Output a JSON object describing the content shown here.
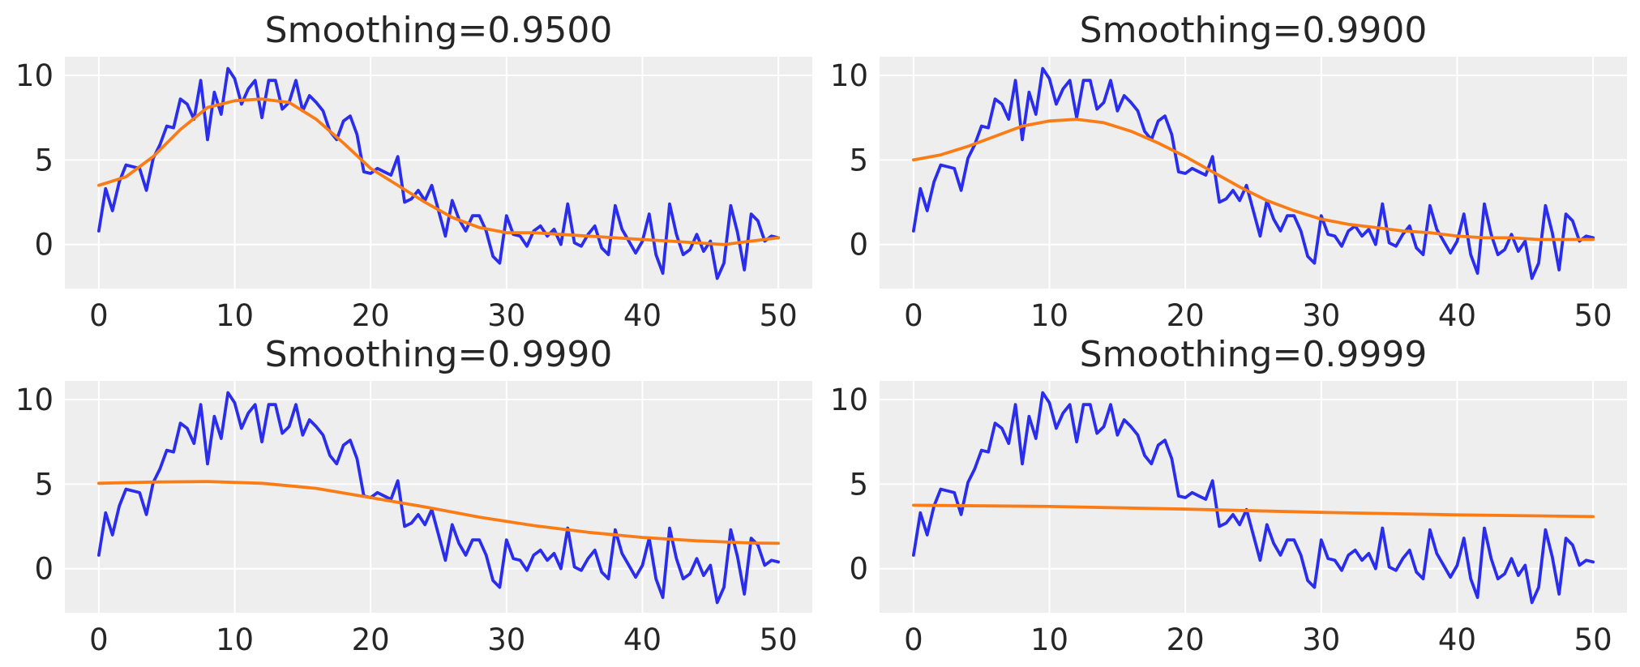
{
  "colors": {
    "background": "#ffffff",
    "plot_background": "#eeeeee",
    "grid": "#ffffff",
    "text": "#262626",
    "raw_series": "#2a2eec",
    "smoothed_series": "#fa7c17"
  },
  "chart_data": [
    {
      "type": "line",
      "title": "Smoothing=0.9500",
      "xlim": [
        -2.5,
        52.5
      ],
      "ylim": [
        -2.6,
        11.1
      ],
      "xticks": [
        0,
        10,
        20,
        30,
        40,
        50
      ],
      "yticks": [
        0,
        5,
        10
      ],
      "grid": true,
      "series": [
        {
          "color": "#2a2eec",
          "x": [
            0,
            0.5,
            1,
            1.5,
            2,
            2.5,
            3,
            3.5,
            4,
            4.5,
            5,
            5.5,
            6,
            6.5,
            7,
            7.5,
            8,
            8.5,
            9,
            9.5,
            10,
            10.5,
            11,
            11.5,
            12,
            12.5,
            13,
            13.5,
            14,
            14.5,
            15,
            15.5,
            16,
            16.5,
            17,
            17.5,
            18,
            18.5,
            19,
            19.5,
            20,
            20.5,
            21,
            21.5,
            22,
            22.5,
            23,
            23.5,
            24,
            24.5,
            25,
            25.5,
            26,
            26.5,
            27,
            27.5,
            28,
            28.5,
            29,
            29.5,
            30,
            30.5,
            31,
            31.5,
            32,
            32.5,
            33,
            33.5,
            34,
            34.5,
            35,
            35.5,
            36,
            36.5,
            37,
            37.5,
            38,
            38.5,
            39,
            39.5,
            40,
            40.5,
            41,
            41.5,
            42,
            42.5,
            43,
            43.5,
            44,
            44.5,
            45,
            45.5,
            46,
            46.5,
            47,
            47.5,
            48,
            48.5,
            49,
            49.5,
            50
          ],
          "y": [
            0.8,
            3.3,
            2.0,
            3.7,
            4.7,
            4.6,
            4.5,
            3.2,
            5.1,
            5.9,
            7.0,
            6.9,
            8.6,
            8.3,
            7.4,
            9.7,
            6.2,
            9.0,
            7.7,
            10.4,
            9.8,
            8.3,
            9.2,
            9.7,
            7.5,
            9.7,
            9.7,
            8.0,
            8.4,
            9.7,
            7.9,
            8.8,
            8.4,
            7.9,
            6.7,
            6.2,
            7.3,
            7.6,
            6.5,
            4.3,
            4.2,
            4.5,
            4.3,
            4.1,
            5.2,
            2.5,
            2.7,
            3.2,
            2.6,
            3.5,
            2.0,
            0.5,
            2.6,
            1.5,
            0.8,
            1.7,
            1.7,
            0.8,
            -0.7,
            -1.1,
            1.7,
            0.6,
            0.5,
            -0.1,
            0.8,
            1.1,
            0.5,
            0.9,
            0.0,
            2.4,
            0.1,
            -0.1,
            0.6,
            1.1,
            -0.2,
            -0.6,
            2.3,
            0.9,
            0.2,
            -0.5,
            0.2,
            1.8,
            -0.6,
            -1.7,
            2.4,
            0.6,
            -0.6,
            -0.3,
            0.6,
            -0.4,
            0.2,
            -2.0,
            -1.1,
            2.3,
            0.7,
            -1.5,
            1.8,
            1.4,
            0.2,
            0.5,
            0.4
          ]
        },
        {
          "color": "#fa7c17",
          "x": [
            0,
            2,
            4,
            6,
            8,
            10,
            12,
            14,
            16,
            18,
            20,
            22,
            24,
            26,
            28,
            30,
            32,
            34,
            36,
            38,
            40,
            42,
            44,
            46,
            48,
            50
          ],
          "y": [
            3.5,
            4.0,
            5.2,
            6.8,
            8.1,
            8.5,
            8.6,
            8.4,
            7.4,
            6.0,
            4.5,
            3.5,
            2.5,
            1.6,
            1.0,
            0.7,
            0.7,
            0.6,
            0.5,
            0.4,
            0.3,
            0.2,
            0.1,
            0.0,
            0.2,
            0.4
          ]
        }
      ]
    },
    {
      "type": "line",
      "title": "Smoothing=0.9900",
      "xlim": [
        -2.5,
        52.5
      ],
      "ylim": [
        -2.6,
        11.1
      ],
      "xticks": [
        0,
        10,
        20,
        30,
        40,
        50
      ],
      "yticks": [
        0,
        5,
        10
      ],
      "grid": true,
      "series": [
        {
          "color": "#2a2eec",
          "x": [
            0,
            0.5,
            1,
            1.5,
            2,
            2.5,
            3,
            3.5,
            4,
            4.5,
            5,
            5.5,
            6,
            6.5,
            7,
            7.5,
            8,
            8.5,
            9,
            9.5,
            10,
            10.5,
            11,
            11.5,
            12,
            12.5,
            13,
            13.5,
            14,
            14.5,
            15,
            15.5,
            16,
            16.5,
            17,
            17.5,
            18,
            18.5,
            19,
            19.5,
            20,
            20.5,
            21,
            21.5,
            22,
            22.5,
            23,
            23.5,
            24,
            24.5,
            25,
            25.5,
            26,
            26.5,
            27,
            27.5,
            28,
            28.5,
            29,
            29.5,
            30,
            30.5,
            31,
            31.5,
            32,
            32.5,
            33,
            33.5,
            34,
            34.5,
            35,
            35.5,
            36,
            36.5,
            37,
            37.5,
            38,
            38.5,
            39,
            39.5,
            40,
            40.5,
            41,
            41.5,
            42,
            42.5,
            43,
            43.5,
            44,
            44.5,
            45,
            45.5,
            46,
            46.5,
            47,
            47.5,
            48,
            48.5,
            49,
            49.5,
            50
          ],
          "y": [
            0.8,
            3.3,
            2.0,
            3.7,
            4.7,
            4.6,
            4.5,
            3.2,
            5.1,
            5.9,
            7.0,
            6.9,
            8.6,
            8.3,
            7.4,
            9.7,
            6.2,
            9.0,
            7.7,
            10.4,
            9.8,
            8.3,
            9.2,
            9.7,
            7.5,
            9.7,
            9.7,
            8.0,
            8.4,
            9.7,
            7.9,
            8.8,
            8.4,
            7.9,
            6.7,
            6.2,
            7.3,
            7.6,
            6.5,
            4.3,
            4.2,
            4.5,
            4.3,
            4.1,
            5.2,
            2.5,
            2.7,
            3.2,
            2.6,
            3.5,
            2.0,
            0.5,
            2.6,
            1.5,
            0.8,
            1.7,
            1.7,
            0.8,
            -0.7,
            -1.1,
            1.7,
            0.6,
            0.5,
            -0.1,
            0.8,
            1.1,
            0.5,
            0.9,
            0.0,
            2.4,
            0.1,
            -0.1,
            0.6,
            1.1,
            -0.2,
            -0.6,
            2.3,
            0.9,
            0.2,
            -0.5,
            0.2,
            1.8,
            -0.6,
            -1.7,
            2.4,
            0.6,
            -0.6,
            -0.3,
            0.6,
            -0.4,
            0.2,
            -2.0,
            -1.1,
            2.3,
            0.7,
            -1.5,
            1.8,
            1.4,
            0.2,
            0.5,
            0.4
          ]
        },
        {
          "color": "#fa7c17",
          "x": [
            0,
            2,
            4,
            6,
            8,
            10,
            12,
            14,
            16,
            18,
            20,
            22,
            24,
            26,
            28,
            30,
            32,
            34,
            36,
            38,
            40,
            42,
            44,
            46,
            48,
            50
          ],
          "y": [
            5.0,
            5.3,
            5.8,
            6.4,
            7.0,
            7.3,
            7.4,
            7.2,
            6.7,
            6.0,
            5.2,
            4.3,
            3.4,
            2.6,
            2.0,
            1.5,
            1.2,
            1.0,
            0.8,
            0.7,
            0.5,
            0.4,
            0.4,
            0.3,
            0.3,
            0.3
          ]
        }
      ]
    },
    {
      "type": "line",
      "title": "Smoothing=0.9990",
      "xlim": [
        -2.5,
        52.5
      ],
      "ylim": [
        -2.6,
        11.1
      ],
      "xticks": [
        0,
        10,
        20,
        30,
        40,
        50
      ],
      "yticks": [
        0,
        5,
        10
      ],
      "grid": true,
      "series": [
        {
          "color": "#2a2eec",
          "x": [
            0,
            0.5,
            1,
            1.5,
            2,
            2.5,
            3,
            3.5,
            4,
            4.5,
            5,
            5.5,
            6,
            6.5,
            7,
            7.5,
            8,
            8.5,
            9,
            9.5,
            10,
            10.5,
            11,
            11.5,
            12,
            12.5,
            13,
            13.5,
            14,
            14.5,
            15,
            15.5,
            16,
            16.5,
            17,
            17.5,
            18,
            18.5,
            19,
            19.5,
            20,
            20.5,
            21,
            21.5,
            22,
            22.5,
            23,
            23.5,
            24,
            24.5,
            25,
            25.5,
            26,
            26.5,
            27,
            27.5,
            28,
            28.5,
            29,
            29.5,
            30,
            30.5,
            31,
            31.5,
            32,
            32.5,
            33,
            33.5,
            34,
            34.5,
            35,
            35.5,
            36,
            36.5,
            37,
            37.5,
            38,
            38.5,
            39,
            39.5,
            40,
            40.5,
            41,
            41.5,
            42,
            42.5,
            43,
            43.5,
            44,
            44.5,
            45,
            45.5,
            46,
            46.5,
            47,
            47.5,
            48,
            48.5,
            49,
            49.5,
            50
          ],
          "y": [
            0.8,
            3.3,
            2.0,
            3.7,
            4.7,
            4.6,
            4.5,
            3.2,
            5.1,
            5.9,
            7.0,
            6.9,
            8.6,
            8.3,
            7.4,
            9.7,
            6.2,
            9.0,
            7.7,
            10.4,
            9.8,
            8.3,
            9.2,
            9.7,
            7.5,
            9.7,
            9.7,
            8.0,
            8.4,
            9.7,
            7.9,
            8.8,
            8.4,
            7.9,
            6.7,
            6.2,
            7.3,
            7.6,
            6.5,
            4.3,
            4.2,
            4.5,
            4.3,
            4.1,
            5.2,
            2.5,
            2.7,
            3.2,
            2.6,
            3.5,
            2.0,
            0.5,
            2.6,
            1.5,
            0.8,
            1.7,
            1.7,
            0.8,
            -0.7,
            -1.1,
            1.7,
            0.6,
            0.5,
            -0.1,
            0.8,
            1.1,
            0.5,
            0.9,
            0.0,
            2.4,
            0.1,
            -0.1,
            0.6,
            1.1,
            -0.2,
            -0.6,
            2.3,
            0.9,
            0.2,
            -0.5,
            0.2,
            1.8,
            -0.6,
            -1.7,
            2.4,
            0.6,
            -0.6,
            -0.3,
            0.6,
            -0.4,
            0.2,
            -2.0,
            -1.1,
            2.3,
            0.7,
            -1.5,
            1.8,
            1.4,
            0.2,
            0.5,
            0.4
          ]
        },
        {
          "color": "#fa7c17",
          "x": [
            0,
            4,
            8,
            12,
            16,
            20,
            24,
            28,
            32,
            36,
            40,
            44,
            48,
            50
          ],
          "y": [
            5.05,
            5.12,
            5.15,
            5.05,
            4.75,
            4.2,
            3.65,
            3.05,
            2.55,
            2.15,
            1.85,
            1.65,
            1.52,
            1.5
          ]
        }
      ]
    },
    {
      "type": "line",
      "title": "Smoothing=0.9999",
      "xlim": [
        -2.5,
        52.5
      ],
      "ylim": [
        -2.6,
        11.1
      ],
      "xticks": [
        0,
        10,
        20,
        30,
        40,
        50
      ],
      "yticks": [
        0,
        5,
        10
      ],
      "grid": true,
      "series": [
        {
          "color": "#2a2eec",
          "x": [
            0,
            0.5,
            1,
            1.5,
            2,
            2.5,
            3,
            3.5,
            4,
            4.5,
            5,
            5.5,
            6,
            6.5,
            7,
            7.5,
            8,
            8.5,
            9,
            9.5,
            10,
            10.5,
            11,
            11.5,
            12,
            12.5,
            13,
            13.5,
            14,
            14.5,
            15,
            15.5,
            16,
            16.5,
            17,
            17.5,
            18,
            18.5,
            19,
            19.5,
            20,
            20.5,
            21,
            21.5,
            22,
            22.5,
            23,
            23.5,
            24,
            24.5,
            25,
            25.5,
            26,
            26.5,
            27,
            27.5,
            28,
            28.5,
            29,
            29.5,
            30,
            30.5,
            31,
            31.5,
            32,
            32.5,
            33,
            33.5,
            34,
            34.5,
            35,
            35.5,
            36,
            36.5,
            37,
            37.5,
            38,
            38.5,
            39,
            39.5,
            40,
            40.5,
            41,
            41.5,
            42,
            42.5,
            43,
            43.5,
            44,
            44.5,
            45,
            45.5,
            46,
            46.5,
            47,
            47.5,
            48,
            48.5,
            49,
            49.5,
            50
          ],
          "y": [
            0.8,
            3.3,
            2.0,
            3.7,
            4.7,
            4.6,
            4.5,
            3.2,
            5.1,
            5.9,
            7.0,
            6.9,
            8.6,
            8.3,
            7.4,
            9.7,
            6.2,
            9.0,
            7.7,
            10.4,
            9.8,
            8.3,
            9.2,
            9.7,
            7.5,
            9.7,
            9.7,
            8.0,
            8.4,
            9.7,
            7.9,
            8.8,
            8.4,
            7.9,
            6.7,
            6.2,
            7.3,
            7.6,
            6.5,
            4.3,
            4.2,
            4.5,
            4.3,
            4.1,
            5.2,
            2.5,
            2.7,
            3.2,
            2.6,
            3.5,
            2.0,
            0.5,
            2.6,
            1.5,
            0.8,
            1.7,
            1.7,
            0.8,
            -0.7,
            -1.1,
            1.7,
            0.6,
            0.5,
            -0.1,
            0.8,
            1.1,
            0.5,
            0.9,
            0.0,
            2.4,
            0.1,
            -0.1,
            0.6,
            1.1,
            -0.2,
            -0.6,
            2.3,
            0.9,
            0.2,
            -0.5,
            0.2,
            1.8,
            -0.6,
            -1.7,
            2.4,
            0.6,
            -0.6,
            -0.3,
            0.6,
            -0.4,
            0.2,
            -2.0,
            -1.1,
            2.3,
            0.7,
            -1.5,
            1.8,
            1.4,
            0.2,
            0.5,
            0.4
          ]
        },
        {
          "color": "#fa7c17",
          "x": [
            0,
            10,
            20,
            30,
            40,
            50
          ],
          "y": [
            3.75,
            3.68,
            3.52,
            3.33,
            3.18,
            3.08
          ]
        }
      ]
    }
  ]
}
